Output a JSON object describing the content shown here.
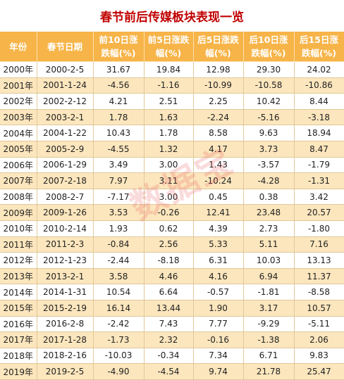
{
  "title": "春节前后传媒板块表现一览",
  "table": {
    "headers": [
      "年份",
      "春节日期",
      "前10日涨\n跌幅(%)",
      "前5日涨跌\n幅(%)",
      "后5日涨跌\n幅(%)",
      "后10日涨\n跌幅(%)",
      "后15日涨\n跌幅(%)"
    ],
    "rows": [
      [
        "2000年",
        "2000-2-5",
        "31.67",
        "19.84",
        "12.98",
        "29.30",
        "24.02"
      ],
      [
        "2001年",
        "2001-1-24",
        "-4.56",
        "-1.16",
        "-10.99",
        "-10.58",
        "-10.86"
      ],
      [
        "2002年",
        "2002-2-12",
        "4.21",
        "2.51",
        "2.25",
        "10.42",
        "8.44"
      ],
      [
        "2003年",
        "2003-2-1",
        "1.78",
        "1.63",
        "-2.24",
        "-5.16",
        "-3.18"
      ],
      [
        "2004年",
        "2004-1-22",
        "10.43",
        "1.78",
        "8.58",
        "9.63",
        "18.94"
      ],
      [
        "2005年",
        "2005-2-9",
        "-4.55",
        "1.32",
        "4.17",
        "3.73",
        "8.47"
      ],
      [
        "2006年",
        "2006-1-29",
        "3.49",
        "3.00",
        "1.43",
        "-3.57",
        "-1.79"
      ],
      [
        "2007年",
        "2007-2-18",
        "7.97",
        "3.11",
        "-10.24",
        "-4.28",
        "-1.31"
      ],
      [
        "2008年",
        "2008-2-7",
        "-7.17",
        "3.00",
        "0.45",
        "0.38",
        "3.42"
      ],
      [
        "2009年",
        "2009-1-26",
        "3.53",
        "-0.26",
        "12.41",
        "23.48",
        "20.57"
      ],
      [
        "2010年",
        "2010-2-14",
        "1.93",
        "0.62",
        "4.39",
        "2.73",
        "-1.80"
      ],
      [
        "2011年",
        "2011-2-3",
        "-0.84",
        "2.56",
        "5.33",
        "5.11",
        "7.16"
      ],
      [
        "2012年",
        "2012-1-23",
        "-2.44",
        "-8.18",
        "6.31",
        "10.03",
        "13.13"
      ],
      [
        "2013年",
        "2013-2-1",
        "3.58",
        "4.46",
        "4.16",
        "6.94",
        "11.37"
      ],
      [
        "2014年",
        "2014-1-31",
        "10.54",
        "6.64",
        "-0.57",
        "-1.81",
        "-8.58"
      ],
      [
        "2015年",
        "2015-2-19",
        "16.14",
        "13.44",
        "1.90",
        "3.17",
        "10.57"
      ],
      [
        "2016年",
        "2016-2-8",
        "-2.42",
        "7.43",
        "7.77",
        "-9.29",
        "-5.11"
      ],
      [
        "2017年",
        "2017-1-28",
        "-1.73",
        "2.32",
        "-0.16",
        "-1.38",
        "2.06"
      ],
      [
        "2018年",
        "2018-2-16",
        "-10.03",
        "-0.34",
        "7.34",
        "6.71",
        "9.83"
      ],
      [
        "2019年",
        "2019-2-5",
        "-4.90",
        "-4.54",
        "9.74",
        "21.78",
        "25.47"
      ]
    ]
  },
  "watermark": "数据宝",
  "colors": {
    "title": "#c00000",
    "header_bg": "#f7b448",
    "header_text": "#ffffff",
    "row_alt_bg": "#fce6bd",
    "watermark": "#e85a5a"
  }
}
